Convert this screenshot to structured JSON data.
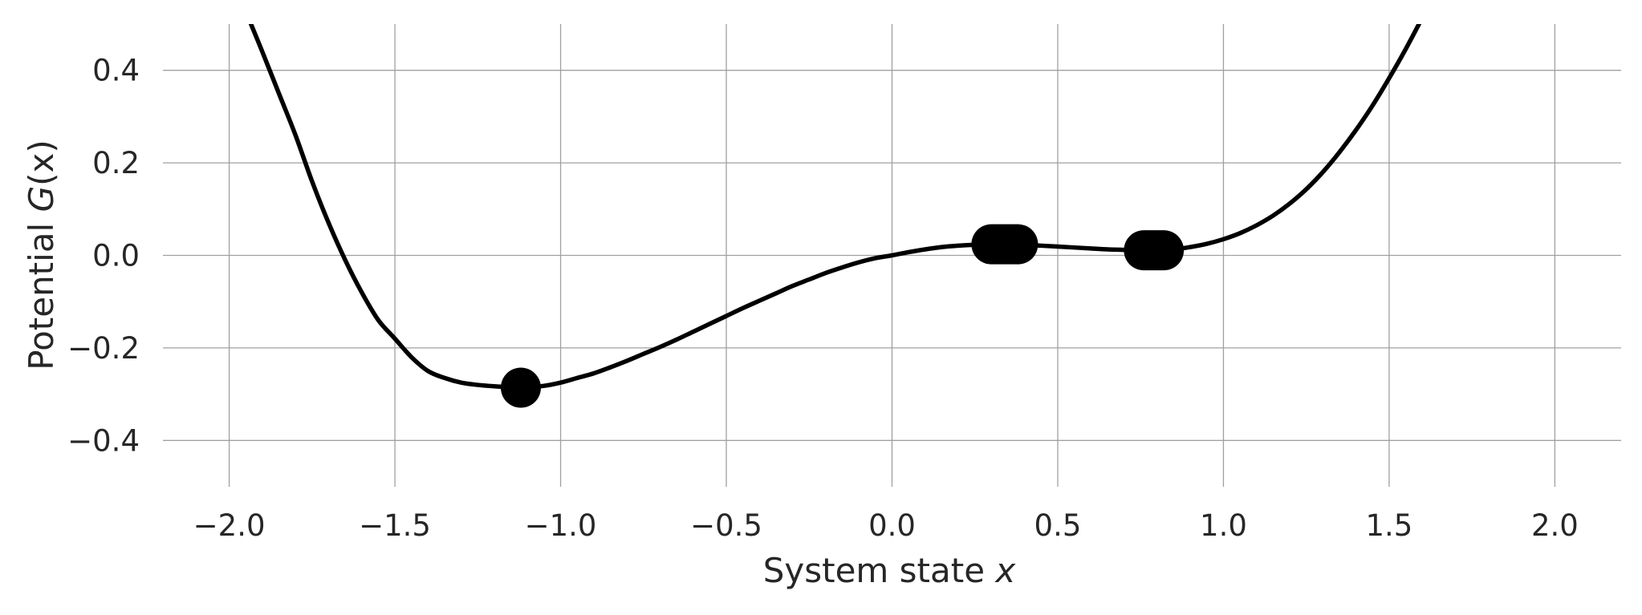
{
  "chart_data": {
    "type": "line",
    "title": "",
    "xlabel_prefix": "System state ",
    "xlabel_var": "x",
    "ylabel_prefix": "Potential ",
    "ylabel_var": "G",
    "ylabel_suffix": "(x)",
    "xlim": [
      -2.2,
      2.2
    ],
    "ylim": [
      -0.5,
      0.5
    ],
    "xticks": [
      -2.0,
      -1.5,
      -1.0,
      -0.5,
      0.0,
      0.5,
      1.0,
      1.5,
      2.0
    ],
    "xtick_labels": [
      "−2.0",
      "−1.5",
      "−1.0",
      "−0.5",
      "0.0",
      "0.5",
      "1.0",
      "1.5",
      "2.0"
    ],
    "yticks": [
      -0.4,
      -0.2,
      0.0,
      0.2,
      0.4
    ],
    "ytick_labels": [
      "−0.4",
      "−0.2",
      "0.0",
      "0.2",
      "0.4"
    ],
    "grid": true,
    "line_color": "#000000",
    "series": [
      {
        "x": [
          -1.94,
          -1.9,
          -1.85,
          -1.8,
          -1.75,
          -1.7,
          -1.65,
          -1.6,
          -1.55,
          -1.5,
          -1.45,
          -1.4,
          -1.35,
          -1.3,
          -1.25,
          -1.2,
          -1.15,
          -1.12,
          -1.1,
          -1.05,
          -1.0,
          -0.95,
          -0.9,
          -0.85,
          -0.8,
          -0.75,
          -0.7,
          -0.65,
          -0.6,
          -0.55,
          -0.5,
          -0.45,
          -0.4,
          -0.35,
          -0.3,
          -0.25,
          -0.2,
          -0.15,
          -0.1,
          -0.05,
          0.0,
          0.05,
          0.1,
          0.15,
          0.2,
          0.25,
          0.3,
          0.34,
          0.4,
          0.45,
          0.5,
          0.55,
          0.6,
          0.65,
          0.7,
          0.75,
          0.79,
          0.85,
          0.9,
          0.95,
          1.0,
          1.05,
          1.1,
          1.15,
          1.2,
          1.25,
          1.3,
          1.35,
          1.4,
          1.45,
          1.5,
          1.55,
          1.6,
          1.65
        ],
        "y": [
          0.51,
          0.44,
          0.35,
          0.26,
          0.16,
          0.07,
          -0.01,
          -0.08,
          -0.14,
          -0.18,
          -0.22,
          -0.25,
          -0.265,
          -0.275,
          -0.28,
          -0.283,
          -0.285,
          -0.286,
          -0.285,
          -0.282,
          -0.275,
          -0.265,
          -0.255,
          -0.242,
          -0.228,
          -0.213,
          -0.198,
          -0.182,
          -0.165,
          -0.148,
          -0.131,
          -0.114,
          -0.098,
          -0.082,
          -0.066,
          -0.052,
          -0.038,
          -0.026,
          -0.015,
          -0.006,
          0.0,
          0.007,
          0.013,
          0.018,
          0.021,
          0.023,
          0.024,
          0.024,
          0.023,
          0.021,
          0.019,
          0.017,
          0.015,
          0.013,
          0.012,
          0.011,
          0.011,
          0.013,
          0.018,
          0.025,
          0.035,
          0.048,
          0.065,
          0.086,
          0.112,
          0.143,
          0.18,
          0.223,
          0.271,
          0.324,
          0.383,
          0.446,
          0.514,
          0.587
        ]
      }
    ],
    "markers": [
      {
        "x": -1.12,
        "y": -0.286,
        "x_end": -1.12
      },
      {
        "x": 0.3,
        "y": 0.024,
        "x_end": 0.38
      },
      {
        "x": 0.76,
        "y": 0.011,
        "x_end": 0.82
      }
    ]
  }
}
